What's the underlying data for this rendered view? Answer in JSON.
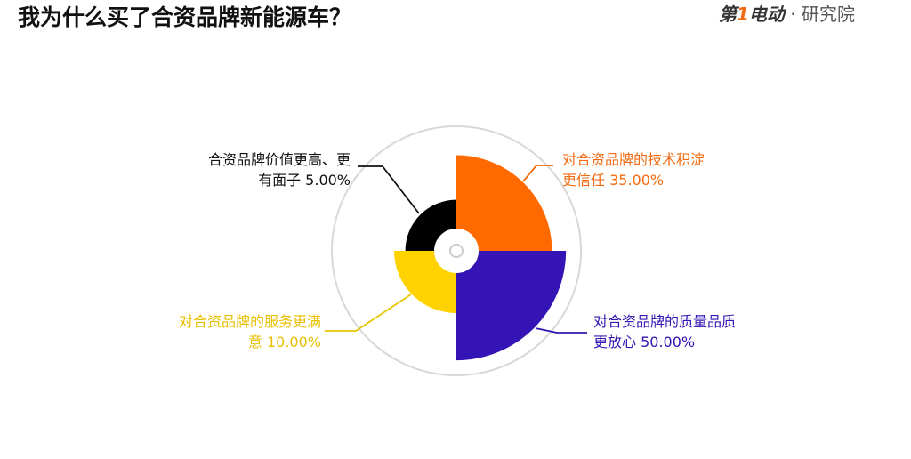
{
  "title": "我为什么买了合资品牌新能源车？",
  "logo": {
    "brand": "第1电动",
    "suffix": "· 研究院"
  },
  "chart_data": {
    "type": "pie",
    "variant": "rose",
    "slices": [
      {
        "label_line1": "对合资品牌的技术积淀",
        "label_line2": "更信任",
        "pct_label": "35.00%",
        "value": 35,
        "color": "#ff6a00"
      },
      {
        "label_line1": "对合资品牌的质量品质",
        "label_line2": "更放心",
        "pct_label": "50.00%",
        "value": 50,
        "color": "#3414b4"
      },
      {
        "label_line1": "对合资品牌的服务更满",
        "label_line2": "意",
        "pct_label": "10.00%",
        "value": 10,
        "color": "#ffd200"
      },
      {
        "label_line1": "合资品牌价值更高、更",
        "label_line2": "有面子",
        "pct_label": "5.00%",
        "value": 5,
        "color": "#000000"
      }
    ]
  }
}
